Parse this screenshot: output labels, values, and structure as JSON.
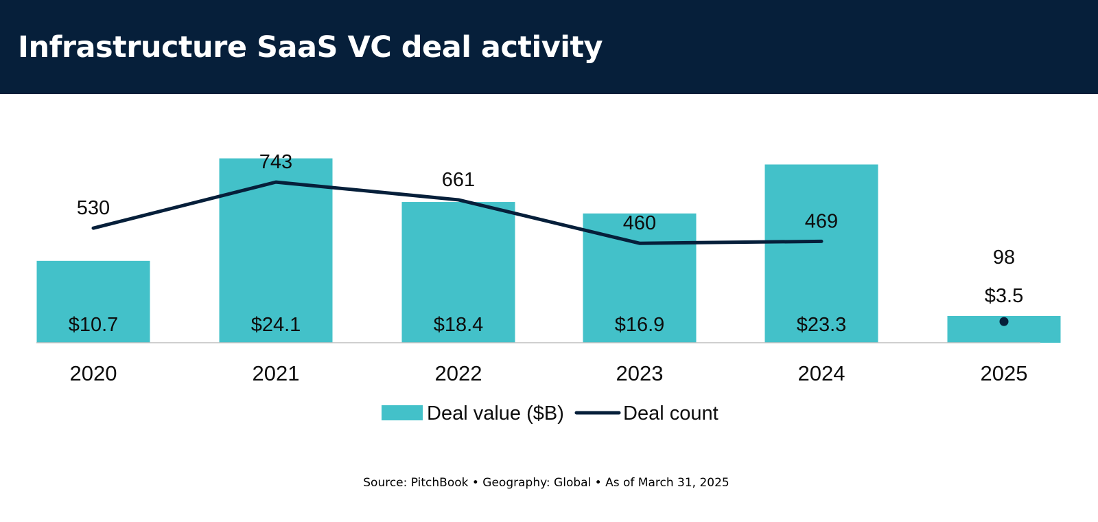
{
  "title": "Infrastructure SaaS VC deal activity",
  "source": "Source: PitchBook • Geography: Global • As of March 31, 2025",
  "colors": {
    "header_bg": "#061f3a",
    "bar": "#43c1c9",
    "line": "#061f3a",
    "text": "#0d0d0d",
    "baseline": "#bfbfbf"
  },
  "chart_data": {
    "type": "bar",
    "title": "Infrastructure SaaS VC deal activity",
    "categories": [
      "2020",
      "2021",
      "2022",
      "2023",
      "2024",
      "2025"
    ],
    "series": [
      {
        "name": "Deal value ($B)",
        "type": "bar",
        "values": [
          10.7,
          24.1,
          18.4,
          16.9,
          23.3,
          3.5
        ],
        "labels": [
          "$10.7",
          "$24.1",
          "$18.4",
          "$16.9",
          "$23.3",
          "$3.5"
        ]
      },
      {
        "name": "Deal count",
        "type": "line",
        "values": [
          530,
          743,
          661,
          460,
          469,
          98
        ],
        "labels": [
          "530",
          "743",
          "661",
          "460",
          "469",
          "98"
        ],
        "note": "Line connects 2020 through 2024; 2025 shown as a separate point"
      }
    ],
    "legend": {
      "position": "bottom-center",
      "entries": [
        "Deal value ($B)",
        "Deal count"
      ]
    },
    "xlabel": "",
    "ylabel": "",
    "ylim_value": [
      0,
      32.5
    ],
    "ylim_count": [
      0,
      1150
    ],
    "grid": false
  }
}
